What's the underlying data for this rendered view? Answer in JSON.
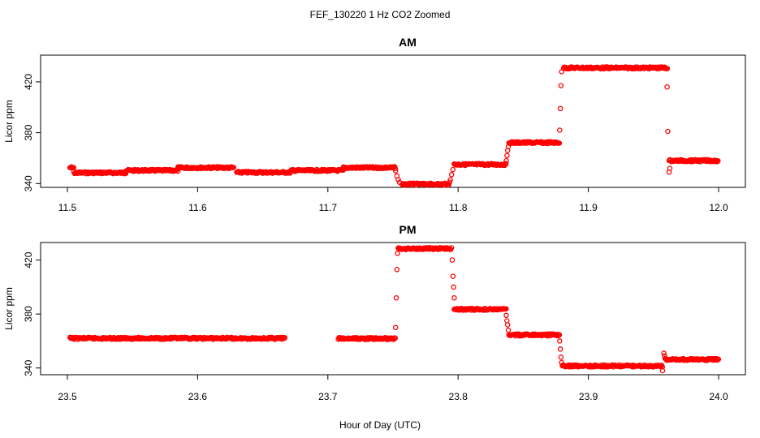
{
  "chart_data": {
    "title": "FEF_130220  1 Hz CO2 Zoomed",
    "xlabel": "Hour of Day (UTC)",
    "colors": {
      "points": "#ff0000"
    },
    "panels": [
      {
        "title": "AM",
        "type": "scatter",
        "ylabel": "Licor ppm",
        "xlim": [
          11.5,
          12.0
        ],
        "ylim": [
          337,
          441
        ],
        "xticks": [
          "11.5",
          "11.6",
          "11.7",
          "11.8",
          "11.9",
          "12.0"
        ],
        "yticks": [
          "340",
          "380",
          "420"
        ],
        "segments": [
          {
            "x": [
              11.502,
              11.505
            ],
            "y": 352.5
          },
          {
            "x": [
              11.505,
              11.545
            ],
            "y": 348.5
          },
          {
            "x": [
              11.545,
              11.585
            ],
            "y": 350.3
          },
          {
            "x": [
              11.585,
              11.628
            ],
            "y": 352.5
          },
          {
            "x": [
              11.63,
              11.672
            ],
            "y": 348.8
          },
          {
            "x": [
              11.672,
              11.712
            ],
            "y": 350.3
          },
          {
            "x": [
              11.712,
              11.752
            ],
            "y": 352.5
          },
          {
            "x": [
              11.757,
              11.793
            ],
            "y": 339.5
          },
          {
            "x": [
              11.797,
              11.837
            ],
            "y": 355.0
          },
          {
            "x": [
              11.839,
              11.878
            ],
            "y": 372.2
          },
          {
            "x": [
              11.881,
              11.961
            ],
            "y": 431.0
          },
          {
            "x": [
              11.962,
              12.0
            ],
            "y": 358.0
          }
        ],
        "transitions": [
          [
            11.752,
            350.0
          ],
          [
            11.753,
            346.0
          ],
          [
            11.754,
            343.0
          ],
          [
            11.755,
            341.0
          ],
          [
            11.7935,
            341.0
          ],
          [
            11.794,
            343.0
          ],
          [
            11.795,
            347.0
          ],
          [
            11.796,
            351.0
          ],
          [
            11.837,
            358.0
          ],
          [
            11.8375,
            362.0
          ],
          [
            11.838,
            366.0
          ],
          [
            11.8385,
            369.0
          ],
          [
            11.878,
            382.0
          ],
          [
            11.8785,
            399.0
          ],
          [
            11.879,
            417.0
          ],
          [
            11.8795,
            428.0
          ],
          [
            11.9605,
            416.0
          ],
          [
            11.961,
            381.0
          ],
          [
            11.962,
            349.0
          ],
          [
            11.9625,
            352.0
          ]
        ]
      },
      {
        "title": "PM",
        "type": "scatter",
        "ylabel": "Licor ppm",
        "xlim": [
          23.5,
          24.0
        ],
        "ylim": [
          335,
          433
        ],
        "xticks": [
          "23.5",
          "23.6",
          "23.7",
          "23.8",
          "23.9",
          "24.0"
        ],
        "yticks": [
          "340",
          "380",
          "420"
        ],
        "segments": [
          {
            "x": [
              23.502,
              23.667
            ],
            "y": 362.0
          },
          {
            "x": [
              23.708,
              23.752
            ],
            "y": 361.8
          },
          {
            "x": [
              23.754,
              23.795
            ],
            "y": 428.5
          },
          {
            "x": [
              23.797,
              23.837
            ],
            "y": 383.5
          },
          {
            "x": [
              23.839,
              23.878
            ],
            "y": 364.5
          },
          {
            "x": [
              23.88,
              23.957
            ],
            "y": 341.5
          },
          {
            "x": [
              23.959,
              24.0
            ],
            "y": 346.3
          }
        ],
        "transitions": [
          [
            23.752,
            370.0
          ],
          [
            23.7525,
            392.0
          ],
          [
            23.753,
            413.0
          ],
          [
            23.7535,
            425.0
          ],
          [
            23.7955,
            420.0
          ],
          [
            23.796,
            408.0
          ],
          [
            23.7965,
            400.0
          ],
          [
            23.797,
            392.0
          ],
          [
            23.837,
            379.0
          ],
          [
            23.8375,
            375.0
          ],
          [
            23.838,
            372.0
          ],
          [
            23.8385,
            368.0
          ],
          [
            23.878,
            360.0
          ],
          [
            23.8785,
            354.0
          ],
          [
            23.879,
            348.0
          ],
          [
            23.8795,
            344.0
          ],
          [
            23.957,
            338.0
          ],
          [
            23.958,
            351.0
          ],
          [
            23.9585,
            349.0
          ]
        ]
      }
    ]
  }
}
